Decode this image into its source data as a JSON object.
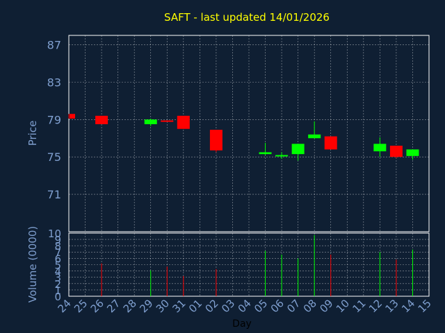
{
  "chart_data": {
    "type": "candlestick",
    "title": "SAFT - last updated 14/01/2026",
    "xlabel": "Day",
    "price_panel": {
      "ylabel": "Price",
      "ylim": [
        67,
        88
      ],
      "y_ticks": [
        "71",
        "75",
        "79",
        "83",
        "87"
      ],
      "grid": true
    },
    "volume_panel": {
      "ylabel": "Volume (0000)",
      "ylim": [
        0,
        10
      ],
      "y_ticks": [
        "0",
        "1",
        "2",
        "3",
        "4",
        "5",
        "6",
        "7",
        "8",
        "9",
        "10"
      ],
      "grid": true
    },
    "x_ticks": [
      "24",
      "25",
      "26",
      "27",
      "28",
      "29",
      "30",
      "31",
      "01",
      "02",
      "03",
      "04",
      "05",
      "06",
      "07",
      "08",
      "09",
      "10",
      "11",
      "12",
      "13",
      "14",
      "15"
    ],
    "candles": [
      {
        "day": "24",
        "open": 79.6,
        "close": 79.1,
        "high": 79.6,
        "low": 79.1,
        "volume": 0
      },
      {
        "day": "26",
        "open": 79.4,
        "close": 78.5,
        "high": 79.4,
        "low": 78.5,
        "volume": 5.2
      },
      {
        "day": "29",
        "open": 78.5,
        "close": 79.0,
        "high": 79.1,
        "low": 78.3,
        "volume": 4.1
      },
      {
        "day": "30",
        "open": 78.9,
        "close": 78.8,
        "high": 78.9,
        "low": 78.8,
        "volume": 4.7
      },
      {
        "day": "31",
        "open": 79.4,
        "close": 78.0,
        "high": 79.4,
        "low": 78.0,
        "volume": 3.2
      },
      {
        "day": "02",
        "open": 77.9,
        "close": 75.7,
        "high": 77.9,
        "low": 75.5,
        "volume": 4.3
      },
      {
        "day": "05",
        "open": 75.3,
        "close": 75.5,
        "high": 76.5,
        "low": 75.2,
        "volume": 7.2
      },
      {
        "day": "06",
        "open": 75.1,
        "close": 75.2,
        "high": 75.5,
        "low": 74.8,
        "volume": 6.6
      },
      {
        "day": "07",
        "open": 75.3,
        "close": 76.4,
        "high": 76.4,
        "low": 74.6,
        "volume": 6.0
      },
      {
        "day": "08",
        "open": 77.0,
        "close": 77.4,
        "high": 78.8,
        "low": 77.0,
        "volume": 9.7
      },
      {
        "day": "09",
        "open": 77.2,
        "close": 75.8,
        "high": 77.2,
        "low": 75.8,
        "volume": 6.6
      },
      {
        "day": "12",
        "open": 75.6,
        "close": 76.4,
        "high": 77.1,
        "low": 75.0,
        "volume": 7.0
      },
      {
        "day": "13",
        "open": 76.2,
        "close": 75.0,
        "high": 76.2,
        "low": 74.9,
        "volume": 5.8
      },
      {
        "day": "14",
        "open": 75.1,
        "close": 75.8,
        "high": 75.8,
        "low": 74.7,
        "volume": 7.4
      }
    ],
    "colors": {
      "background": "#0f1f33",
      "up": "#00ff00",
      "down": "#ff0000",
      "grid": "#ffffff",
      "axis_text": "#7f9fcf",
      "title": "#ffff00",
      "xlabel": "#000000"
    }
  }
}
